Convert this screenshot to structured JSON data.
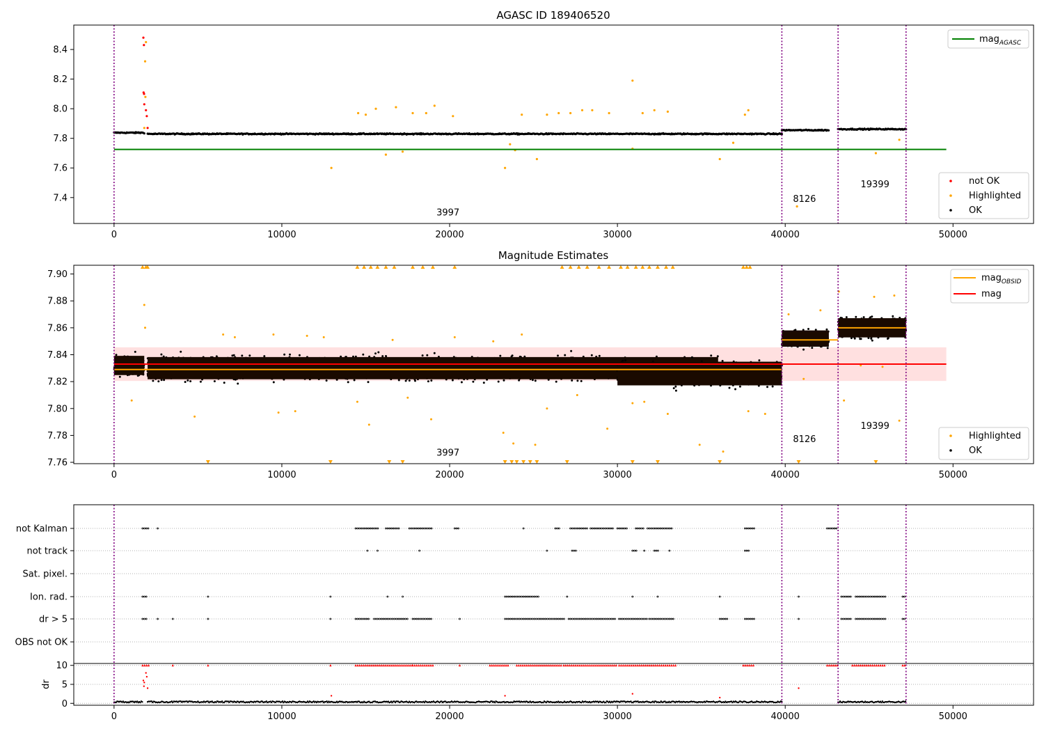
{
  "figure": {
    "panel1_title": "AGASC ID 189406520",
    "panel2_title": "Magnitude Estimates"
  },
  "colors": {
    "ok": "#000000",
    "highlighted": "#ffa500",
    "not_ok": "#ff0000",
    "agasc_line": "#008000",
    "mean_line": "#ff0000",
    "obsid_line": "#ffa500",
    "band_fill": "#ffcccc",
    "obsid_divider": "#800080"
  },
  "chart_data": [
    {
      "type": "scatter",
      "title": "AGASC ID 189406520",
      "xlim": [
        -2400,
        54800
      ],
      "ylim": [
        7.225,
        8.565
      ],
      "xticks": [
        "0",
        "10000",
        "20000",
        "30000",
        "40000",
        "50000"
      ],
      "yticks": [
        "7.4",
        "7.6",
        "7.8",
        "8.0",
        "8.2",
        "8.4"
      ],
      "obsid_boundaries": [
        0,
        39800,
        43150,
        47200
      ],
      "obsid_labels": [
        {
          "text": "3997",
          "x": 19900,
          "y": 7.28
        },
        {
          "text": "8126",
          "x": 41150,
          "y": 7.37
        },
        {
          "text": "19399",
          "x": 45350,
          "y": 7.47
        }
      ],
      "lines": [
        {
          "name": "mag_AGASC",
          "y": 7.725,
          "x_range": [
            0,
            49600
          ]
        }
      ],
      "segments": [
        {
          "x_range": [
            0,
            1800
          ],
          "level": 7.838
        },
        {
          "x_range": [
            2000,
            39800
          ],
          "level": 7.83
        },
        {
          "x_range": [
            39800,
            42600
          ],
          "level": 7.855
        },
        {
          "x_range": [
            43150,
            47200
          ],
          "level": 7.862
        }
      ],
      "highlighted_points": [
        [
          1800,
          7.87
        ],
        [
          1900,
          8.45
        ],
        [
          1850,
          8.32
        ],
        [
          1870,
          8.08
        ],
        [
          12950,
          7.6
        ],
        [
          14550,
          7.97
        ],
        [
          15000,
          7.96
        ],
        [
          15600,
          8.0
        ],
        [
          16200,
          7.69
        ],
        [
          16800,
          8.01
        ],
        [
          17200,
          7.71
        ],
        [
          17800,
          7.97
        ],
        [
          18600,
          7.97
        ],
        [
          19100,
          8.02
        ],
        [
          20200,
          7.95
        ],
        [
          23300,
          7.6
        ],
        [
          23600,
          7.76
        ],
        [
          23900,
          7.72
        ],
        [
          24300,
          7.96
        ],
        [
          25200,
          7.66
        ],
        [
          25800,
          7.96
        ],
        [
          26500,
          7.97
        ],
        [
          27200,
          7.97
        ],
        [
          27900,
          7.99
        ],
        [
          28500,
          7.99
        ],
        [
          29500,
          7.97
        ],
        [
          30900,
          8.19
        ],
        [
          30900,
          7.73
        ],
        [
          31500,
          7.97
        ],
        [
          32200,
          7.99
        ],
        [
          33000,
          7.98
        ],
        [
          36100,
          7.66
        ],
        [
          36900,
          7.77
        ],
        [
          37600,
          7.96
        ],
        [
          37800,
          7.99
        ],
        [
          40700,
          7.34
        ],
        [
          45400,
          7.7
        ],
        [
          46800,
          7.79
        ]
      ],
      "not_ok_points": [
        [
          1750,
          8.48
        ],
        [
          1780,
          8.43
        ],
        [
          1760,
          8.11
        ],
        [
          1790,
          8.1
        ],
        [
          1800,
          8.03
        ],
        [
          1900,
          7.99
        ],
        [
          1950,
          7.95
        ],
        [
          2000,
          7.87
        ]
      ],
      "legend_upper": [
        "mag"
      ],
      "legend_upper_sub": "AGASC",
      "legend_lower": [
        "not OK",
        "Highlighted",
        "OK"
      ]
    },
    {
      "type": "scatter",
      "title": "Magnitude Estimates",
      "xlim": [
        -2400,
        54800
      ],
      "ylim": [
        7.759,
        7.9065
      ],
      "xticks": [
        "0",
        "10000",
        "20000",
        "30000",
        "40000",
        "50000"
      ],
      "yticks": [
        "7.76",
        "7.78",
        "7.80",
        "7.82",
        "7.84",
        "7.86",
        "7.88",
        "7.90"
      ],
      "obsid_boundaries": [
        0,
        39800,
        43150,
        47200
      ],
      "obsid_labels": [
        {
          "text": "3997",
          "x": 19900,
          "y": 7.765
        },
        {
          "text": "8126",
          "x": 41150,
          "y": 7.775
        },
        {
          "text": "19399",
          "x": 45350,
          "y": 7.785
        }
      ],
      "mean": {
        "name": "mag",
        "y": 7.833,
        "band": [
          7.8205,
          7.8455
        ],
        "x_range": [
          0,
          49600
        ]
      },
      "obsid_means": [
        {
          "x_range": [
            0,
            39800
          ],
          "y": 7.829
        },
        {
          "x_range": [
            39800,
            43150
          ],
          "y": 7.851
        },
        {
          "x_range": [
            43150,
            47200
          ],
          "y": 7.86
        }
      ],
      "ok_clusters": [
        {
          "x_range": [
            0,
            1800
          ],
          "center": 7.832,
          "spread": 0.013,
          "count": 220
        },
        {
          "x_range": [
            2000,
            36000
          ],
          "center": 7.83,
          "spread": 0.015,
          "count": 2400
        },
        {
          "x_range": [
            30000,
            39800
          ],
          "center": 7.826,
          "spread": 0.016,
          "count": 700
        },
        {
          "x_range": [
            39800,
            42600
          ],
          "center": 7.852,
          "spread": 0.011,
          "count": 300
        },
        {
          "x_range": [
            43150,
            47200
          ],
          "center": 7.86,
          "spread": 0.013,
          "count": 420
        }
      ],
      "highlighted_points": [
        [
          1800,
          7.877
        ],
        [
          1850,
          7.86
        ],
        [
          1050,
          7.806
        ],
        [
          4800,
          7.794
        ],
        [
          6500,
          7.855
        ],
        [
          7200,
          7.853
        ],
        [
          9500,
          7.855
        ],
        [
          9800,
          7.797
        ],
        [
          10800,
          7.798
        ],
        [
          11500,
          7.854
        ],
        [
          12500,
          7.853
        ],
        [
          14500,
          7.805
        ],
        [
          15200,
          7.788
        ],
        [
          16600,
          7.851
        ],
        [
          17500,
          7.808
        ],
        [
          18900,
          7.792
        ],
        [
          20300,
          7.853
        ],
        [
          22600,
          7.85
        ],
        [
          23200,
          7.782
        ],
        [
          23800,
          7.774
        ],
        [
          24300,
          7.855
        ],
        [
          25100,
          7.773
        ],
        [
          25800,
          7.8
        ],
        [
          27600,
          7.81
        ],
        [
          29400,
          7.785
        ],
        [
          30900,
          7.804
        ],
        [
          31600,
          7.805
        ],
        [
          33000,
          7.796
        ],
        [
          34900,
          7.773
        ],
        [
          36300,
          7.768
        ],
        [
          37800,
          7.798
        ],
        [
          38800,
          7.796
        ],
        [
          40200,
          7.87
        ],
        [
          41100,
          7.822
        ],
        [
          42100,
          7.873
        ],
        [
          43500,
          7.806
        ],
        [
          43200,
          7.887
        ],
        [
          44500,
          7.832
        ],
        [
          45300,
          7.883
        ],
        [
          45800,
          7.831
        ],
        [
          46500,
          7.884
        ],
        [
          46800,
          7.791
        ]
      ],
      "clipped_high": [
        1700,
        1900,
        2000,
        14500,
        14900,
        15300,
        15700,
        16200,
        16700,
        17800,
        18400,
        19000,
        20300,
        26700,
        27200,
        27700,
        28200,
        28900,
        29500,
        30200,
        30600,
        31100,
        31500,
        31900,
        32400,
        32900,
        33300,
        37500,
        37700,
        37900
      ],
      "clipped_low": [
        5600,
        12900,
        16400,
        17200,
        23300,
        23700,
        24000,
        24400,
        24800,
        25200,
        27000,
        30900,
        32400,
        36100,
        40800,
        45400
      ],
      "legend_upper": [
        "mag",
        "mag"
      ],
      "legend_upper_sub": "OBSID",
      "legend_lower": [
        "Highlighted",
        "OK"
      ]
    },
    {
      "type": "scatter",
      "xlim": [
        -2400,
        54800
      ],
      "xticks": [
        "0",
        "10000",
        "20000",
        "30000",
        "40000",
        "50000"
      ],
      "obsid_boundaries": [
        0,
        39800,
        43150,
        47200
      ],
      "flag_rows": [
        "not Kalman",
        "not track",
        "Sat. pixel.",
        "Ion. rad.",
        "dr > 5",
        "OBS not OK"
      ],
      "flag_ranges": {
        "not Kalman": [
          [
            1700,
            2100
          ],
          [
            2600,
            2700
          ],
          [
            14400,
            15800
          ],
          [
            16200,
            17000
          ],
          [
            17600,
            19000
          ],
          [
            20300,
            20600
          ],
          [
            24400,
            24500
          ],
          [
            26300,
            26600
          ],
          [
            27200,
            28200
          ],
          [
            28400,
            29800
          ],
          [
            30000,
            30600
          ],
          [
            31100,
            31600
          ],
          [
            31800,
            33300
          ],
          [
            37600,
            38200
          ],
          [
            42500,
            43150
          ]
        ],
        "not track": [
          [
            15100,
            15200
          ],
          [
            15700,
            15800
          ],
          [
            18200,
            18300
          ],
          [
            25800,
            25900
          ],
          [
            27300,
            27600
          ],
          [
            30900,
            31200
          ],
          [
            31600,
            31700
          ],
          [
            32200,
            32500
          ],
          [
            33100,
            33200
          ],
          [
            37600,
            37900
          ]
        ],
        "Sat. pixel.": [],
        "Ion. rad.": [
          [
            1700,
            2000
          ],
          [
            5600,
            5700
          ],
          [
            12900,
            13000
          ],
          [
            16300,
            16400
          ],
          [
            17200,
            17300
          ],
          [
            23300,
            25300
          ],
          [
            27000,
            27100
          ],
          [
            30900,
            31000
          ],
          [
            32400,
            32500
          ],
          [
            36100,
            36200
          ],
          [
            40800,
            40900
          ],
          [
            43350,
            43900
          ],
          [
            44200,
            46000
          ],
          [
            47000,
            47200
          ]
        ],
        "dr > 5": [
          [
            1700,
            2000
          ],
          [
            2600,
            2700
          ],
          [
            3500,
            3600
          ],
          [
            5600,
            5700
          ],
          [
            12900,
            13000
          ],
          [
            14400,
            15200
          ],
          [
            15500,
            17500
          ],
          [
            17800,
            19000
          ],
          [
            20600,
            20700
          ],
          [
            23300,
            26900
          ],
          [
            27100,
            29900
          ],
          [
            30100,
            31800
          ],
          [
            31900,
            33400
          ],
          [
            36100,
            36600
          ],
          [
            37600,
            38200
          ],
          [
            40800,
            40900
          ],
          [
            43350,
            43900
          ],
          [
            44200,
            46000
          ],
          [
            47000,
            47200
          ]
        ],
        "OBS not OK": []
      },
      "dr": {
        "ylim": [
          -0.5,
          10.5
        ],
        "yticks": [
          "0",
          "5",
          "10"
        ],
        "ylabel": "dr",
        "clipped_at": 10,
        "baseline_segments": [
          [
            0,
            1700
          ],
          [
            2000,
            39800
          ],
          [
            43150,
            47200
          ]
        ],
        "spike_points": [
          [
            1750,
            6
          ],
          [
            1780,
            4.5
          ],
          [
            1800,
            5.5
          ],
          [
            1900,
            8
          ],
          [
            1950,
            7
          ],
          [
            2000,
            4
          ],
          [
            12950,
            2
          ],
          [
            23300,
            2
          ],
          [
            30900,
            2.5
          ],
          [
            36100,
            1.5
          ],
          [
            40800,
            4
          ]
        ],
        "red_ranges": [
          [
            1700,
            2100
          ],
          [
            3500,
            3600
          ],
          [
            5600,
            5700
          ],
          [
            12900,
            13000
          ],
          [
            14400,
            17800
          ],
          [
            17800,
            19100
          ],
          [
            20600,
            20700
          ],
          [
            22400,
            23500
          ],
          [
            24000,
            26700
          ],
          [
            26800,
            30000
          ],
          [
            30100,
            33500
          ],
          [
            37500,
            38200
          ],
          [
            42500,
            43150
          ],
          [
            44000,
            46000
          ],
          [
            47000,
            47200
          ]
        ]
      }
    }
  ]
}
